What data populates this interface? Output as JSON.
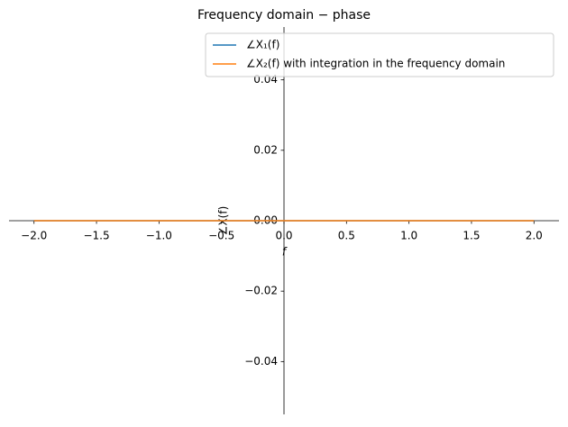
{
  "chart_data": {
    "type": "line",
    "title": "Frequency domain − phase",
    "x_label": "f",
    "y_label": "∠X(f)",
    "x": [
      -2,
      -1,
      0,
      1,
      2
    ],
    "series": [
      {
        "name": "∠X₁(f)",
        "color": "#1f77b4",
        "values": [
          0,
          0,
          0,
          0,
          0
        ]
      },
      {
        "name": "∠X₂(f) with integration in the frequency domain",
        "color": "#ff7f0e",
        "values": [
          0,
          0,
          0,
          0,
          0
        ]
      }
    ],
    "xlim": [
      -2.2,
      2.2
    ],
    "ylim": [
      -0.055,
      0.055
    ],
    "xticks": [
      {
        "value": -2,
        "label": "−2.0"
      },
      {
        "value": -1.5,
        "label": "−1.5"
      },
      {
        "value": -1,
        "label": "−1.0"
      },
      {
        "value": -0.5,
        "label": "−0.5"
      },
      {
        "value": 0,
        "label": "0.0"
      },
      0.5,
      {
        "value": 1,
        "label": "1.0"
      },
      1.5,
      {
        "value": 2,
        "label": "2.0"
      }
    ],
    "yticks": [
      {
        "value": -0.04,
        "label": "−0.04"
      },
      {
        "value": -0.02,
        "label": "−0.02"
      },
      {
        "value": 0,
        "label": "0.00"
      },
      0.02,
      0.04
    ],
    "legend": "upper right"
  }
}
